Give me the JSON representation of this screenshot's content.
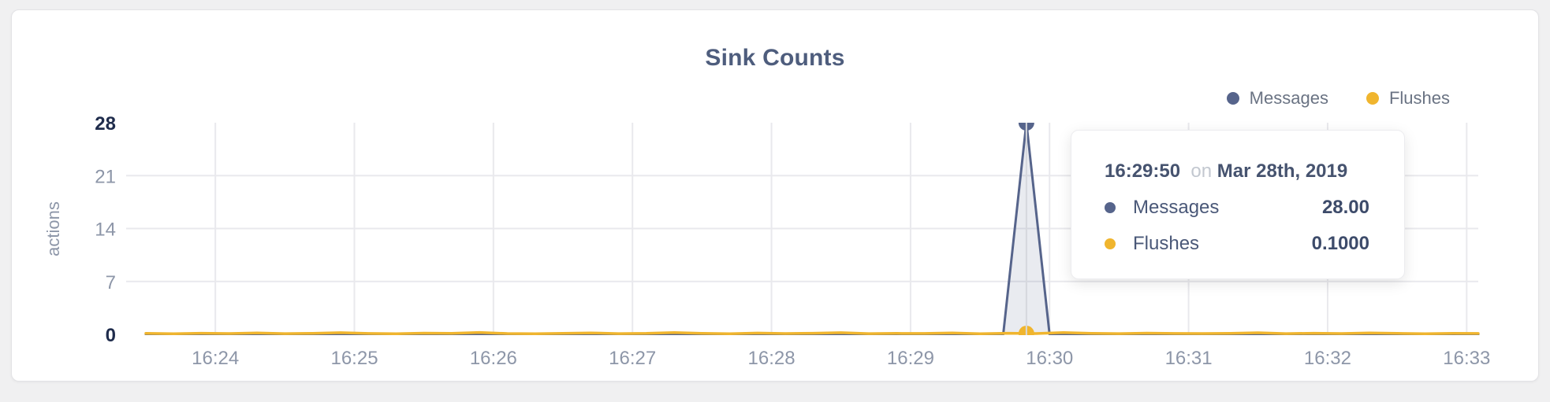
{
  "page": {
    "background": "#f0f0f1"
  },
  "card": {
    "title": "Sink Counts"
  },
  "legend": [
    {
      "label": "Messages",
      "color": "#56648b"
    },
    {
      "label": "Flushes",
      "color": "#f0b52e"
    }
  ],
  "tooltip": {
    "time": "16:29:50",
    "on_word": "on",
    "date": "Mar 28th, 2019",
    "rows": [
      {
        "label": "Messages",
        "value": "28.00",
        "color": "#56648b"
      },
      {
        "label": "Flushes",
        "value": "0.1000",
        "color": "#f0b52e"
      }
    ]
  },
  "chart_data": {
    "type": "line",
    "title": "Sink Counts",
    "xlabel": "",
    "ylabel": "actions",
    "ylim": [
      0,
      28
    ],
    "yticks": [
      28,
      21,
      14,
      7,
      0
    ],
    "ygrid_only": [
      21,
      14,
      7
    ],
    "xticks": [
      "16:24",
      "16:25",
      "16:26",
      "16:27",
      "16:28",
      "16:29",
      "16:30",
      "16:31",
      "16:32",
      "16:33"
    ],
    "x_domain": {
      "start": "16:23:30",
      "end": "16:33:05",
      "tick_interval_s": 60,
      "first_tick_offset_s": 30,
      "total_s": 575
    },
    "grid": {
      "vertical": true,
      "horizontal": true
    },
    "legend_position": "top-right",
    "colors": {
      "grid": "#e9e9ed",
      "crosshair": "#d6d8dd",
      "axis_muted": "#8d96a8",
      "axis_dark": "#1f2c4c"
    },
    "series": [
      {
        "name": "Messages",
        "color": "#56648b",
        "fill": "rgba(86,100,139,0.13)",
        "points_t": [
          0,
          370,
          380,
          390,
          575
        ],
        "points_v": [
          0,
          0,
          28,
          0,
          0
        ]
      },
      {
        "name": "Flushes",
        "color": "#f0b52e",
        "sample_interval_s": 12,
        "values": [
          0.12,
          0.08,
          0.15,
          0.1,
          0.18,
          0.09,
          0.14,
          0.22,
          0.11,
          0.07,
          0.16,
          0.12,
          0.25,
          0.1,
          0.08,
          0.14,
          0.19,
          0.09,
          0.13,
          0.24,
          0.12,
          0.08,
          0.17,
          0.1,
          0.15,
          0.22,
          0.09,
          0.13,
          0.11,
          0.19,
          0.08,
          0.15,
          0.1,
          0.23,
          0.12,
          0.09,
          0.16,
          0.11,
          0.1,
          0.14,
          0.21,
          0.09,
          0.15,
          0.1,
          0.18,
          0.12,
          0.08,
          0.13,
          0.11
        ]
      }
    ],
    "highlight": {
      "t": 380,
      "time": "16:29:50",
      "date": "Mar 28th, 2019",
      "messages_value": 28.0,
      "flushes_value": 0.1
    }
  }
}
